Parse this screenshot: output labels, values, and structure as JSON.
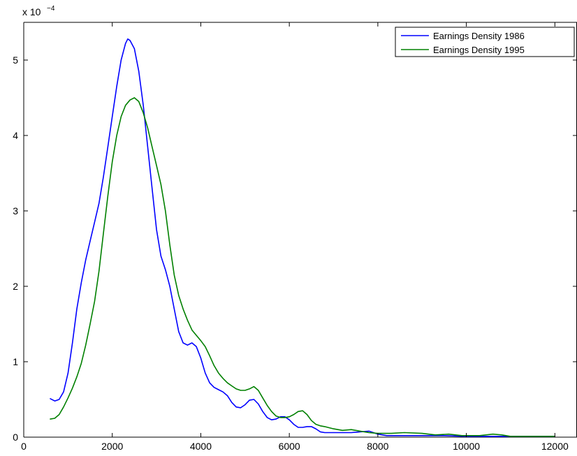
{
  "chart_data": {
    "type": "line",
    "xlim": [
      0,
      12500
    ],
    "ylim": [
      0,
      5.5
    ],
    "y_exponent_label": "x 10",
    "y_exponent_power": "−4",
    "x_ticks": [
      0,
      2000,
      4000,
      6000,
      8000,
      10000,
      12000
    ],
    "x_tick_labels": [
      "0",
      "2000",
      "4000",
      "6000",
      "8000",
      "10000",
      "12000"
    ],
    "y_ticks": [
      0,
      1,
      2,
      3,
      4,
      5
    ],
    "y_tick_labels": [
      "0",
      "1",
      "2",
      "3",
      "4",
      "5"
    ],
    "grid": false,
    "legend_position": "top-right",
    "series": [
      {
        "name": "Earnings Density 1986",
        "color": "#0000ff",
        "points": [
          [
            600,
            0.51
          ],
          [
            700,
            0.48
          ],
          [
            800,
            0.5
          ],
          [
            900,
            0.6
          ],
          [
            1000,
            0.85
          ],
          [
            1100,
            1.25
          ],
          [
            1200,
            1.7
          ],
          [
            1300,
            2.05
          ],
          [
            1400,
            2.35
          ],
          [
            1500,
            2.6
          ],
          [
            1600,
            2.85
          ],
          [
            1700,
            3.1
          ],
          [
            1800,
            3.45
          ],
          [
            1900,
            3.85
          ],
          [
            2000,
            4.25
          ],
          [
            2100,
            4.65
          ],
          [
            2200,
            5.0
          ],
          [
            2300,
            5.22
          ],
          [
            2350,
            5.28
          ],
          [
            2400,
            5.26
          ],
          [
            2500,
            5.15
          ],
          [
            2600,
            4.85
          ],
          [
            2700,
            4.4
          ],
          [
            2800,
            3.85
          ],
          [
            2900,
            3.3
          ],
          [
            3000,
            2.75
          ],
          [
            3100,
            2.4
          ],
          [
            3200,
            2.22
          ],
          [
            3300,
            2.0
          ],
          [
            3400,
            1.7
          ],
          [
            3500,
            1.4
          ],
          [
            3600,
            1.25
          ],
          [
            3700,
            1.22
          ],
          [
            3800,
            1.25
          ],
          [
            3900,
            1.2
          ],
          [
            4000,
            1.05
          ],
          [
            4100,
            0.85
          ],
          [
            4200,
            0.72
          ],
          [
            4300,
            0.66
          ],
          [
            4400,
            0.63
          ],
          [
            4500,
            0.6
          ],
          [
            4600,
            0.55
          ],
          [
            4700,
            0.46
          ],
          [
            4800,
            0.4
          ],
          [
            4900,
            0.39
          ],
          [
            5000,
            0.43
          ],
          [
            5100,
            0.49
          ],
          [
            5200,
            0.5
          ],
          [
            5300,
            0.44
          ],
          [
            5400,
            0.34
          ],
          [
            5500,
            0.26
          ],
          [
            5600,
            0.23
          ],
          [
            5700,
            0.24
          ],
          [
            5800,
            0.27
          ],
          [
            5900,
            0.27
          ],
          [
            6000,
            0.23
          ],
          [
            6100,
            0.17
          ],
          [
            6200,
            0.13
          ],
          [
            6300,
            0.13
          ],
          [
            6400,
            0.14
          ],
          [
            6500,
            0.14
          ],
          [
            6600,
            0.11
          ],
          [
            6700,
            0.07
          ],
          [
            6800,
            0.06
          ],
          [
            7000,
            0.06
          ],
          [
            7200,
            0.06
          ],
          [
            7400,
            0.06
          ],
          [
            7600,
            0.07
          ],
          [
            7800,
            0.08
          ],
          [
            7900,
            0.06
          ],
          [
            8000,
            0.04
          ],
          [
            8200,
            0.02
          ],
          [
            8500,
            0.02
          ],
          [
            9000,
            0.02
          ],
          [
            9500,
            0.02
          ],
          [
            10000,
            0.01
          ],
          [
            10500,
            0.01
          ],
          [
            11000,
            0.01
          ],
          [
            11500,
            0.01
          ],
          [
            12000,
            0.01
          ]
        ]
      },
      {
        "name": "Earnings Density 1995",
        "color": "#008000",
        "points": [
          [
            600,
            0.24
          ],
          [
            700,
            0.25
          ],
          [
            800,
            0.3
          ],
          [
            900,
            0.4
          ],
          [
            1000,
            0.52
          ],
          [
            1100,
            0.65
          ],
          [
            1200,
            0.8
          ],
          [
            1300,
            0.98
          ],
          [
            1400,
            1.22
          ],
          [
            1500,
            1.5
          ],
          [
            1600,
            1.8
          ],
          [
            1700,
            2.2
          ],
          [
            1800,
            2.7
          ],
          [
            1900,
            3.2
          ],
          [
            2000,
            3.65
          ],
          [
            2100,
            4.0
          ],
          [
            2200,
            4.25
          ],
          [
            2300,
            4.4
          ],
          [
            2400,
            4.47
          ],
          [
            2500,
            4.5
          ],
          [
            2600,
            4.45
          ],
          [
            2700,
            4.3
          ],
          [
            2800,
            4.1
          ],
          [
            2900,
            3.85
          ],
          [
            3000,
            3.6
          ],
          [
            3100,
            3.35
          ],
          [
            3200,
            3.0
          ],
          [
            3300,
            2.55
          ],
          [
            3400,
            2.15
          ],
          [
            3500,
            1.88
          ],
          [
            3600,
            1.7
          ],
          [
            3700,
            1.55
          ],
          [
            3800,
            1.42
          ],
          [
            3900,
            1.35
          ],
          [
            4000,
            1.28
          ],
          [
            4100,
            1.2
          ],
          [
            4200,
            1.08
          ],
          [
            4300,
            0.95
          ],
          [
            4400,
            0.85
          ],
          [
            4500,
            0.78
          ],
          [
            4600,
            0.72
          ],
          [
            4700,
            0.68
          ],
          [
            4800,
            0.64
          ],
          [
            4900,
            0.62
          ],
          [
            5000,
            0.62
          ],
          [
            5100,
            0.64
          ],
          [
            5200,
            0.67
          ],
          [
            5300,
            0.62
          ],
          [
            5400,
            0.52
          ],
          [
            5500,
            0.42
          ],
          [
            5600,
            0.34
          ],
          [
            5700,
            0.28
          ],
          [
            5800,
            0.26
          ],
          [
            5900,
            0.26
          ],
          [
            6000,
            0.27
          ],
          [
            6100,
            0.3
          ],
          [
            6200,
            0.34
          ],
          [
            6300,
            0.35
          ],
          [
            6400,
            0.3
          ],
          [
            6500,
            0.22
          ],
          [
            6600,
            0.17
          ],
          [
            6700,
            0.15
          ],
          [
            6800,
            0.14
          ],
          [
            7000,
            0.11
          ],
          [
            7200,
            0.09
          ],
          [
            7400,
            0.1
          ],
          [
            7600,
            0.08
          ],
          [
            7800,
            0.06
          ],
          [
            8000,
            0.05
          ],
          [
            8300,
            0.05
          ],
          [
            8600,
            0.06
          ],
          [
            9000,
            0.05
          ],
          [
            9300,
            0.03
          ],
          [
            9600,
            0.04
          ],
          [
            9900,
            0.02
          ],
          [
            10300,
            0.02
          ],
          [
            10600,
            0.04
          ],
          [
            10800,
            0.03
          ],
          [
            11000,
            0.01
          ],
          [
            11500,
            0.01
          ],
          [
            12000,
            0.01
          ]
        ]
      }
    ]
  }
}
